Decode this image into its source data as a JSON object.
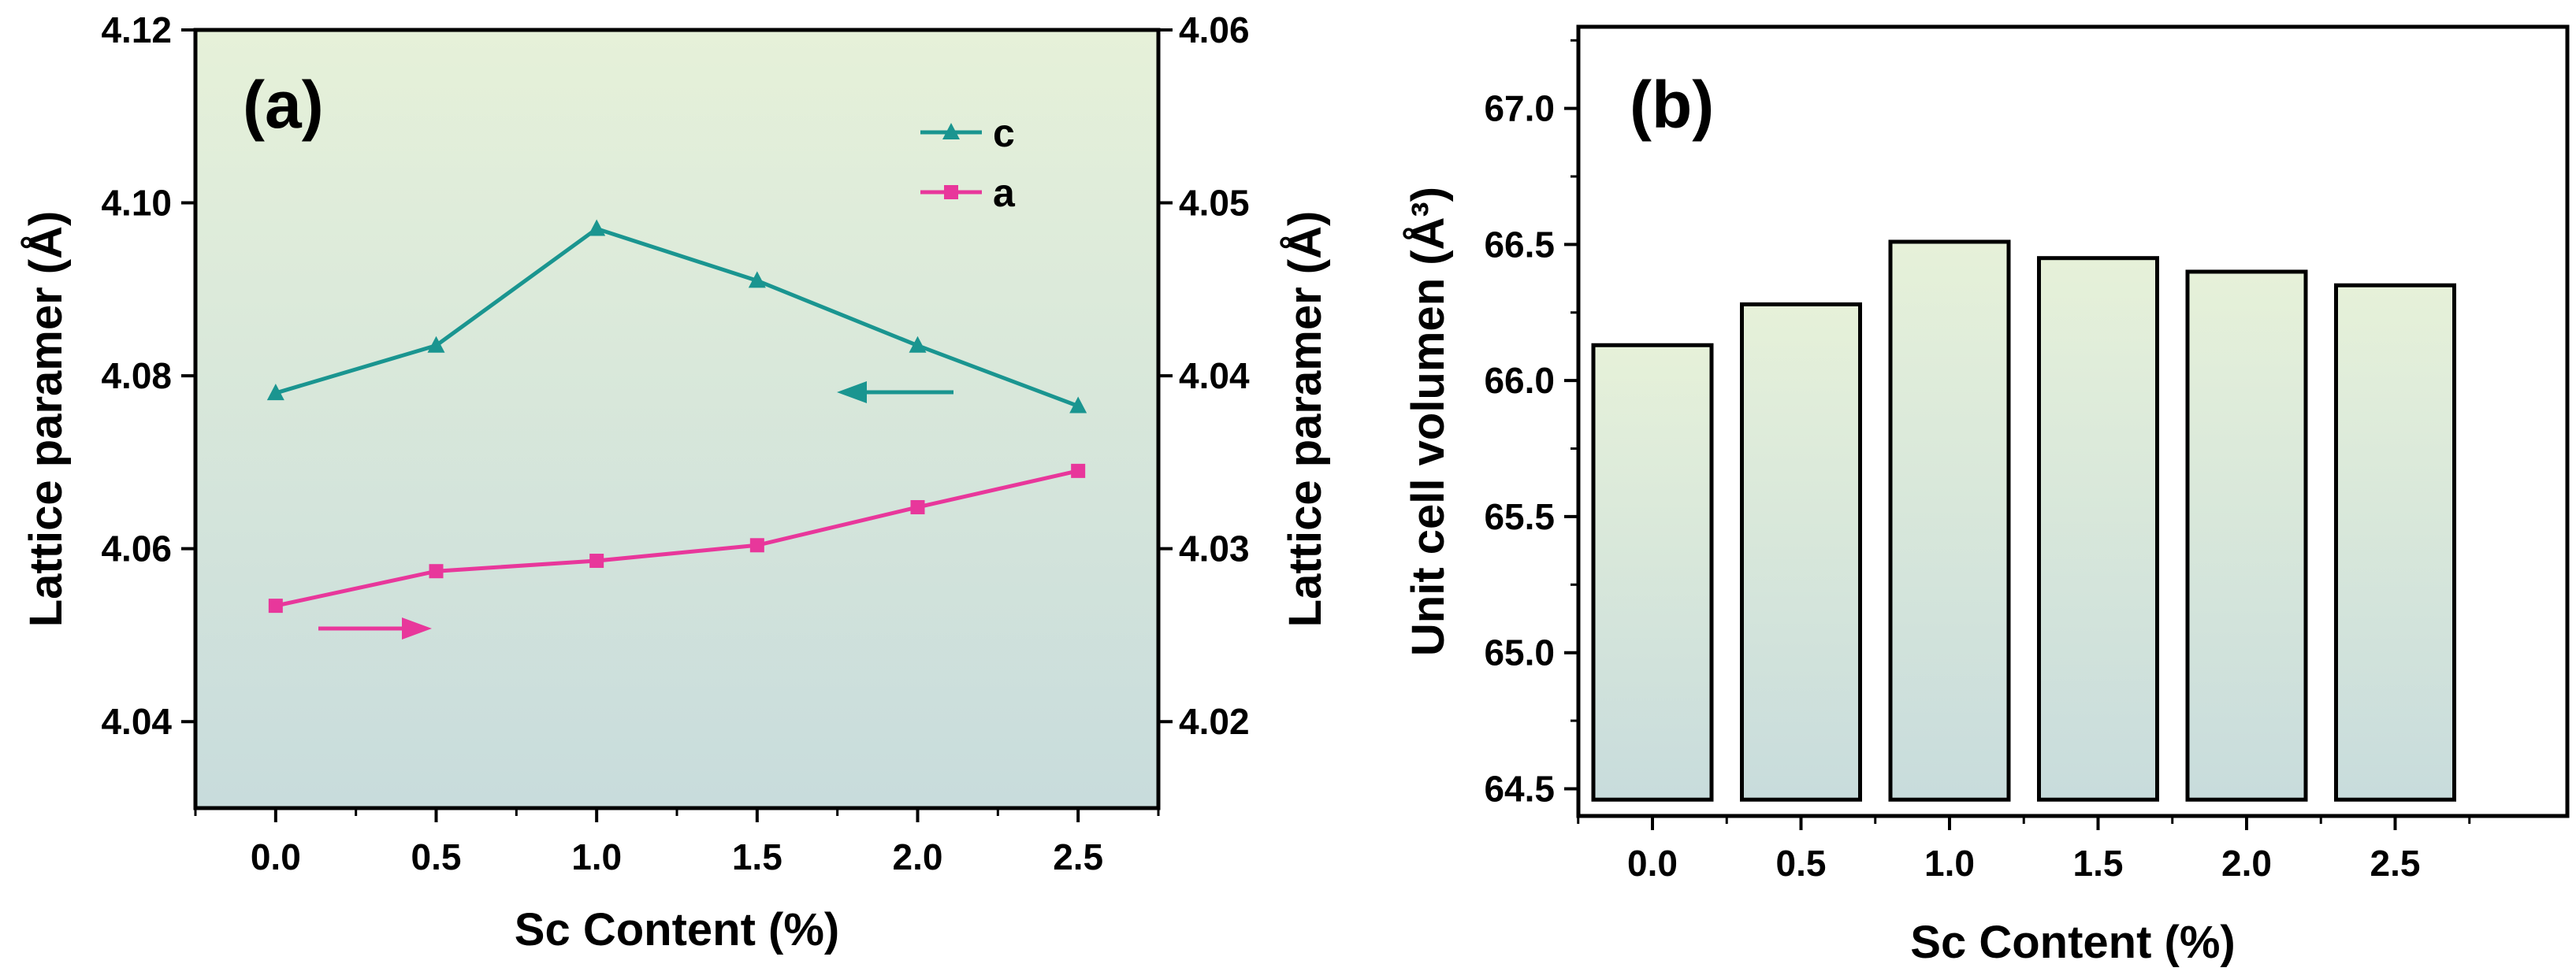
{
  "chart_data": [
    {
      "type": "line",
      "panel_label": "(a)",
      "xlabel": "Sc Content (%)",
      "ylabel_left": "Lattice paramer (Å)",
      "ylabel_right": "Lattice paramer (Å)",
      "x": [
        0.0,
        0.5,
        1.0,
        1.5,
        2.0,
        2.5
      ],
      "x_tick_labels": [
        "0.0",
        "0.5",
        "1.0",
        "1.5",
        "2.0",
        "2.5"
      ],
      "xlim": [
        -0.25,
        2.75
      ],
      "ylim_left": [
        4.03,
        4.12
      ],
      "ylim_right": [
        4.015,
        4.06
      ],
      "y_ticks_left": [
        "4.04",
        "4.06",
        "4.08",
        "4.10",
        "4.12"
      ],
      "y_ticks_right": [
        "4.02",
        "4.03",
        "4.04",
        "4.05",
        "4.06"
      ],
      "legend_position": "top-right",
      "series": [
        {
          "name": "c",
          "axis": "left",
          "marker": "triangle",
          "color": "#1a9590",
          "values": [
            4.078,
            4.0835,
            4.097,
            4.091,
            4.0835,
            4.0765
          ]
        },
        {
          "name": "a",
          "axis": "right",
          "marker": "square",
          "color": "#e8379b",
          "values": [
            4.0267,
            4.0287,
            4.0293,
            4.0302,
            4.0324,
            4.0345
          ]
        }
      ],
      "annotations": [
        {
          "type": "arrow",
          "direction": "left",
          "meaning": "c series uses left axis",
          "color": "#1a9590"
        },
        {
          "type": "arrow",
          "direction": "right",
          "meaning": "a series uses right axis",
          "color": "#e8379b"
        }
      ],
      "background_gradient": [
        "#e6f1d9",
        "#c8dcdc"
      ]
    },
    {
      "type": "bar",
      "panel_label": "(b)",
      "xlabel": "Sc Content (%)",
      "ylabel": "Unit cell volumen (Å³)",
      "categories": [
        "0.0",
        "0.5",
        "1.0",
        "1.5",
        "2.0",
        "2.5"
      ],
      "values": [
        66.13,
        66.28,
        66.51,
        66.45,
        66.4,
        66.35
      ],
      "ylim": [
        64.4,
        67.3
      ],
      "y_ticks": [
        "64.5",
        "65.0",
        "65.5",
        "66.0",
        "66.5",
        "67.0"
      ],
      "bar_gradient": [
        "#e6f1d9",
        "#c8dcdc"
      ]
    }
  ]
}
